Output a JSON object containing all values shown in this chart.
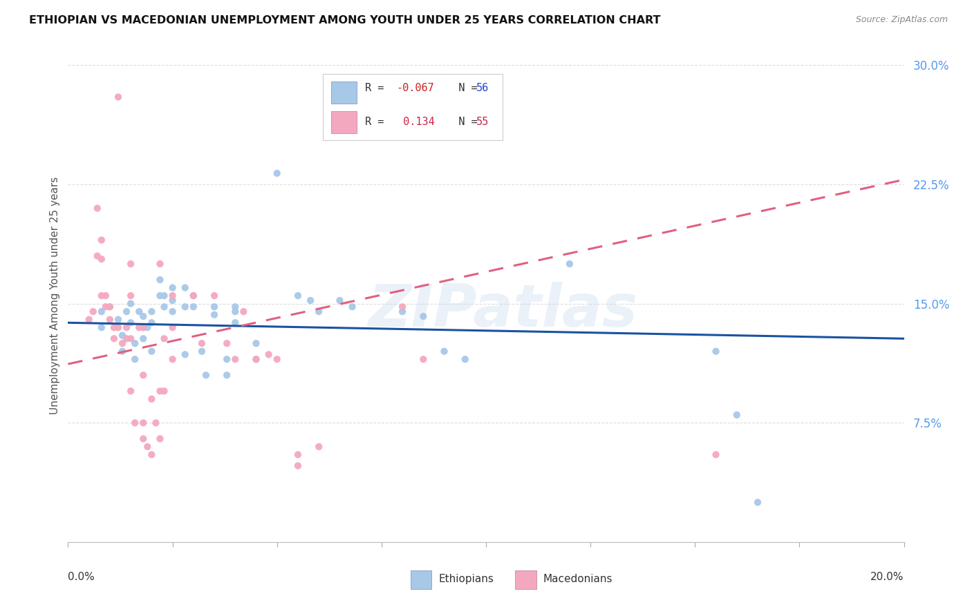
{
  "title": "ETHIOPIAN VS MACEDONIAN UNEMPLOYMENT AMONG YOUTH UNDER 25 YEARS CORRELATION CHART",
  "source": "Source: ZipAtlas.com",
  "ylabel": "Unemployment Among Youth under 25 years",
  "yticks": [
    0.0,
    0.075,
    0.15,
    0.225,
    0.3
  ],
  "ytick_labels": [
    "",
    "7.5%",
    "15.0%",
    "22.5%",
    "30.0%"
  ],
  "xlim": [
    0.0,
    0.2
  ],
  "ylim": [
    0.0,
    0.31
  ],
  "blue_color": "#a8c8e8",
  "pink_color": "#f4a8c0",
  "blue_line_color": "#1a52a0",
  "pink_line_color": "#e06080",
  "blue_scatter": [
    [
      0.008,
      0.145
    ],
    [
      0.008,
      0.135
    ],
    [
      0.01,
      0.148
    ],
    [
      0.012,
      0.14
    ],
    [
      0.013,
      0.13
    ],
    [
      0.013,
      0.12
    ],
    [
      0.014,
      0.145
    ],
    [
      0.015,
      0.15
    ],
    [
      0.015,
      0.138
    ],
    [
      0.016,
      0.125
    ],
    [
      0.016,
      0.115
    ],
    [
      0.017,
      0.145
    ],
    [
      0.018,
      0.142
    ],
    [
      0.018,
      0.135
    ],
    [
      0.018,
      0.128
    ],
    [
      0.019,
      0.135
    ],
    [
      0.02,
      0.145
    ],
    [
      0.02,
      0.138
    ],
    [
      0.02,
      0.12
    ],
    [
      0.022,
      0.165
    ],
    [
      0.022,
      0.155
    ],
    [
      0.023,
      0.155
    ],
    [
      0.023,
      0.148
    ],
    [
      0.025,
      0.16
    ],
    [
      0.025,
      0.152
    ],
    [
      0.025,
      0.145
    ],
    [
      0.028,
      0.16
    ],
    [
      0.028,
      0.148
    ],
    [
      0.028,
      0.118
    ],
    [
      0.03,
      0.155
    ],
    [
      0.03,
      0.148
    ],
    [
      0.032,
      0.12
    ],
    [
      0.033,
      0.105
    ],
    [
      0.035,
      0.143
    ],
    [
      0.035,
      0.148
    ],
    [
      0.038,
      0.115
    ],
    [
      0.038,
      0.105
    ],
    [
      0.04,
      0.148
    ],
    [
      0.04,
      0.145
    ],
    [
      0.04,
      0.138
    ],
    [
      0.045,
      0.125
    ],
    [
      0.045,
      0.115
    ],
    [
      0.05,
      0.232
    ],
    [
      0.055,
      0.155
    ],
    [
      0.058,
      0.152
    ],
    [
      0.06,
      0.145
    ],
    [
      0.065,
      0.152
    ],
    [
      0.068,
      0.148
    ],
    [
      0.08,
      0.145
    ],
    [
      0.085,
      0.142
    ],
    [
      0.09,
      0.12
    ],
    [
      0.095,
      0.115
    ],
    [
      0.12,
      0.175
    ],
    [
      0.155,
      0.12
    ],
    [
      0.16,
      0.08
    ],
    [
      0.165,
      0.025
    ]
  ],
  "pink_scatter": [
    [
      0.005,
      0.14
    ],
    [
      0.006,
      0.145
    ],
    [
      0.007,
      0.18
    ],
    [
      0.007,
      0.21
    ],
    [
      0.008,
      0.19
    ],
    [
      0.008,
      0.178
    ],
    [
      0.008,
      0.155
    ],
    [
      0.009,
      0.155
    ],
    [
      0.009,
      0.148
    ],
    [
      0.01,
      0.148
    ],
    [
      0.01,
      0.14
    ],
    [
      0.011,
      0.135
    ],
    [
      0.011,
      0.128
    ],
    [
      0.012,
      0.28
    ],
    [
      0.012,
      0.135
    ],
    [
      0.013,
      0.125
    ],
    [
      0.014,
      0.135
    ],
    [
      0.014,
      0.128
    ],
    [
      0.015,
      0.175
    ],
    [
      0.015,
      0.155
    ],
    [
      0.015,
      0.128
    ],
    [
      0.015,
      0.095
    ],
    [
      0.016,
      0.075
    ],
    [
      0.017,
      0.135
    ],
    [
      0.018,
      0.135
    ],
    [
      0.018,
      0.105
    ],
    [
      0.018,
      0.075
    ],
    [
      0.018,
      0.065
    ],
    [
      0.019,
      0.06
    ],
    [
      0.02,
      0.055
    ],
    [
      0.02,
      0.09
    ],
    [
      0.021,
      0.075
    ],
    [
      0.022,
      0.175
    ],
    [
      0.022,
      0.095
    ],
    [
      0.022,
      0.065
    ],
    [
      0.023,
      0.128
    ],
    [
      0.023,
      0.095
    ],
    [
      0.025,
      0.155
    ],
    [
      0.025,
      0.135
    ],
    [
      0.025,
      0.115
    ],
    [
      0.03,
      0.155
    ],
    [
      0.032,
      0.125
    ],
    [
      0.035,
      0.155
    ],
    [
      0.038,
      0.125
    ],
    [
      0.04,
      0.115
    ],
    [
      0.042,
      0.145
    ],
    [
      0.045,
      0.115
    ],
    [
      0.048,
      0.118
    ],
    [
      0.05,
      0.115
    ],
    [
      0.055,
      0.055
    ],
    [
      0.055,
      0.048
    ],
    [
      0.06,
      0.06
    ],
    [
      0.08,
      0.148
    ],
    [
      0.085,
      0.115
    ],
    [
      0.155,
      0.055
    ]
  ],
  "blue_trend_x": [
    0.0,
    0.2
  ],
  "blue_trend_y": [
    0.138,
    0.128
  ],
  "pink_trend_x": [
    0.0,
    0.2
  ],
  "pink_trend_y": [
    0.112,
    0.228
  ],
  "watermark": "ZIPatlas",
  "background_color": "#ffffff",
  "grid_color": "#dddddd"
}
